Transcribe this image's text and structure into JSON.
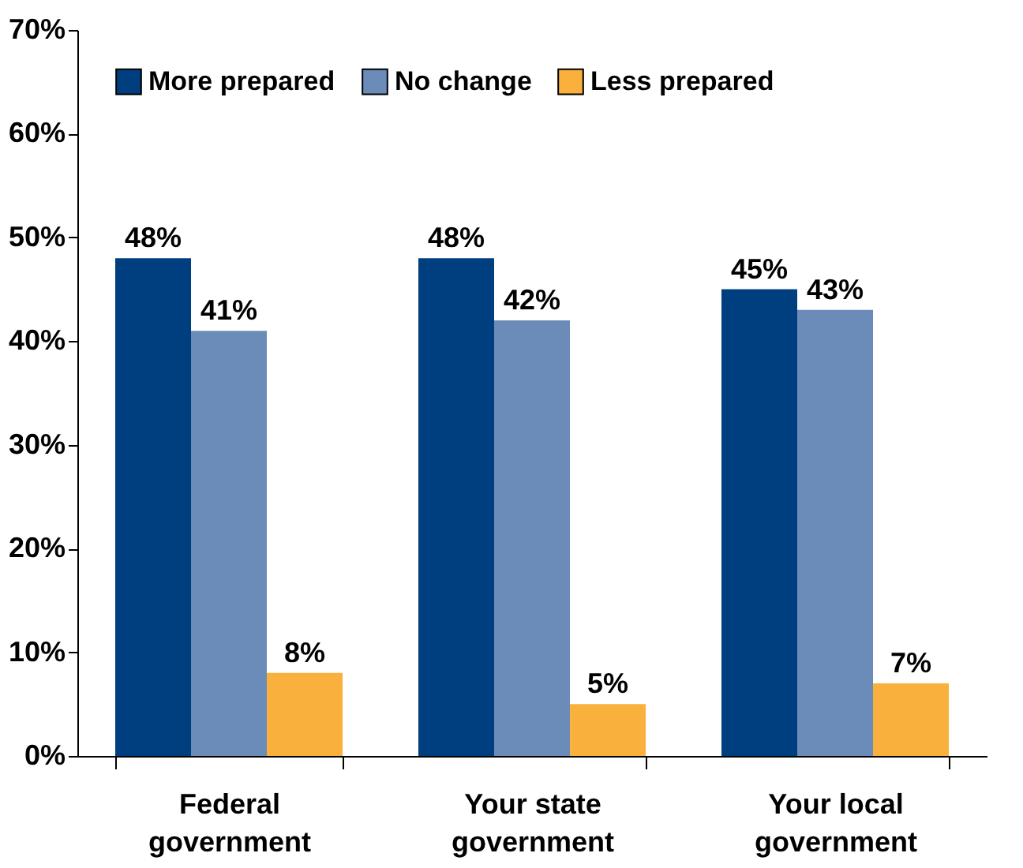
{
  "chart_data": {
    "type": "bar",
    "categories": [
      "Federal government",
      "Your state government",
      "Your local government"
    ],
    "series": [
      {
        "name": "More prepared",
        "color": "#003f7f",
        "values": [
          48,
          48,
          45
        ],
        "value_labels": [
          "48%",
          "48%",
          "45%"
        ]
      },
      {
        "name": "No change",
        "color": "#6b8cb8",
        "values": [
          41,
          42,
          43
        ],
        "value_labels": [
          "41%",
          "42%",
          "43%"
        ]
      },
      {
        "name": "Less prepared",
        "color": "#f9b03c",
        "values": [
          8,
          5,
          7
        ],
        "value_labels": [
          "8%",
          "5%",
          "7%"
        ]
      }
    ],
    "ylim": [
      0,
      70
    ],
    "yticks": [
      {
        "value": 0,
        "label": "0%"
      },
      {
        "value": 10,
        "label": "10%"
      },
      {
        "value": 20,
        "label": "20%"
      },
      {
        "value": 30,
        "label": "30%"
      },
      {
        "value": 40,
        "label": "40%"
      },
      {
        "value": 50,
        "label": "50%"
      },
      {
        "value": 60,
        "label": "60%"
      },
      {
        "value": 70,
        "label": "70%"
      }
    ],
    "grid": false,
    "legend": "top"
  }
}
